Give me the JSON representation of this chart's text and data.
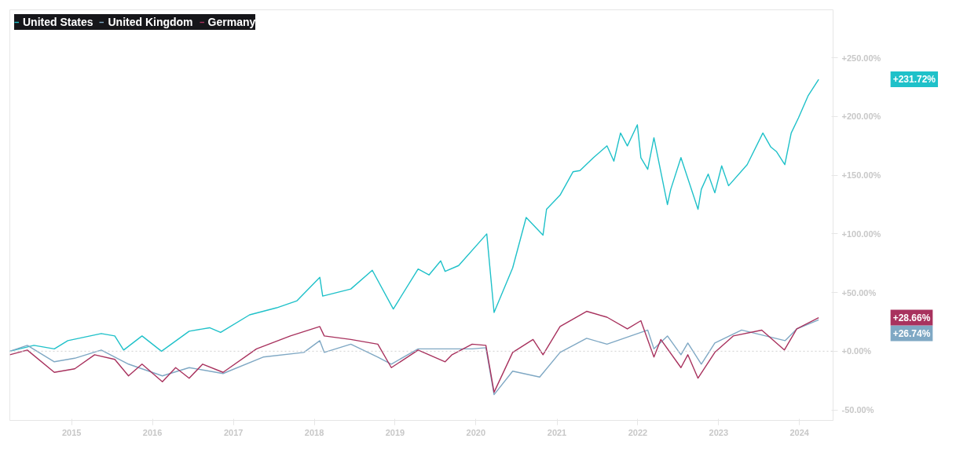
{
  "chart_data": {
    "type": "line",
    "xlim": [
      "2014-03-28",
      "2024-06-01"
    ],
    "xticks": [
      "2015",
      "2016",
      "2017",
      "2018",
      "2019",
      "2020",
      "2021",
      "2022",
      "2023",
      "2024"
    ],
    "ylim": [
      -59,
      291
    ],
    "yticks": [
      {
        "value": -50,
        "label": "-50.00%"
      },
      {
        "value": 0,
        "label": "+0.00%"
      },
      {
        "value": 50,
        "label": "+50.00%"
      },
      {
        "value": 100,
        "label": "+100.00%"
      },
      {
        "value": 150,
        "label": "+150.00%"
      },
      {
        "value": 200,
        "label": "+200.00%"
      },
      {
        "value": 250,
        "label": "+250.00%"
      }
    ],
    "grid": false,
    "legend": "top left",
    "ref_lines": [
      {
        "axis": "y",
        "value": 0,
        "color": "#d0d0d0",
        "line_style": "dotted"
      }
    ],
    "series": [
      {
        "name": "United States",
        "color": "#1fc1c9",
        "x": [
          "2014-03-28",
          "2014-07",
          "2014-10",
          "2014-12",
          "2015-05",
          "2015-07",
          "2015-08-24",
          "2015-11",
          "2016-02-11",
          "2016-06",
          "2016-09",
          "2016-11-04",
          "2017-03",
          "2017-07",
          "2017-10",
          "2018-01-26",
          "2018-02-08",
          "2018-06",
          "2018-09-20",
          "2018-12-24",
          "2019-04",
          "2019-06-03",
          "2019-07-26",
          "2019-08",
          "2019-10",
          "2020-02-19",
          "2020-03-23",
          "2020-06",
          "2020-08",
          "2020-10-30",
          "2020-11",
          "2021-01",
          "2021-03",
          "2021-04",
          "2021-06",
          "2021-08",
          "2021-09",
          "2021-10",
          "2021-11",
          "2021-12-30",
          "2022-01",
          "2022-02",
          "2022-03",
          "2022-05",
          "2022-05-30",
          "2022-07",
          "2022-09-30",
          "2022-10",
          "2022-11",
          "2022-12",
          "2023-01",
          "2023-02",
          "2023-05-10",
          "2023-07-20",
          "2023-08-25",
          "2023-09-20",
          "2023-10-27",
          "2023-11-25",
          "2023-12-28",
          "2024-02-10",
          "2024-03-28"
        ],
        "values": [
          0,
          5,
          2,
          9,
          15,
          13,
          1,
          13,
          0,
          17,
          20,
          16,
          31,
          37,
          43,
          63,
          47,
          53,
          69,
          36,
          70,
          65,
          77,
          68,
          73,
          100,
          33,
          71,
          114,
          99,
          121,
          133,
          153,
          154,
          165,
          175,
          162,
          186,
          175,
          193,
          165,
          155,
          182,
          125,
          138,
          165,
          121,
          138,
          151,
          135,
          158,
          141,
          159,
          186,
          174,
          170,
          159,
          186,
          199,
          218,
          231.72
        ]
      },
      {
        "name": "United Kingdom",
        "color": "#7fa8c4",
        "x": [
          "2014-03-28",
          "2014-06",
          "2014-10",
          "2015-01",
          "2015-05",
          "2015-09",
          "2016-02",
          "2016-06",
          "2016-11",
          "2017-05",
          "2017-11",
          "2018-01-26",
          "2018-02",
          "2018-06",
          "2018-10",
          "2018-12",
          "2019-04",
          "2019-12",
          "2020-02",
          "2020-03-23",
          "2020-06",
          "2020-10",
          "2021-01",
          "2021-05",
          "2021-08",
          "2022-02",
          "2022-03",
          "2022-05",
          "2022-07",
          "2022-08",
          "2022-10",
          "2022-12",
          "2023-04-15",
          "2023-10-28",
          "2023-12-20",
          "2024-03-28"
        ],
        "values": [
          0,
          5,
          -9,
          -6,
          1,
          -11,
          -21,
          -14,
          -19,
          -5,
          -1,
          9,
          -1,
          6,
          -5,
          -11,
          2,
          2,
          3,
          -37,
          -17,
          -22,
          -1,
          11,
          6,
          18,
          2,
          13,
          -3,
          7,
          -11,
          7,
          18,
          9,
          19,
          26.74
        ]
      },
      {
        "name": "Germany",
        "color": "#a8325e",
        "x": [
          "2014-03-28",
          "2014-06",
          "2014-10",
          "2015-01",
          "2015-04",
          "2015-07",
          "2015-09",
          "2015-11",
          "2016-02",
          "2016-04",
          "2016-06",
          "2016-08",
          "2016-11",
          "2017-04",
          "2017-09",
          "2018-01-26",
          "2018-02",
          "2018-06",
          "2018-10",
          "2018-12",
          "2019-04",
          "2019-08",
          "2019-09",
          "2019-12",
          "2020-02",
          "2020-03-23",
          "2020-06",
          "2020-09",
          "2020-10-30",
          "2021-01",
          "2021-05",
          "2021-08",
          "2021-11",
          "2022-01",
          "2022-03",
          "2022-04",
          "2022-07",
          "2022-08",
          "2022-09-30",
          "2022-12",
          "2023-03-08",
          "2023-07-15",
          "2023-10-25",
          "2023-12-20",
          "2024-03-28"
        ],
        "values": [
          -3,
          1,
          -18,
          -15,
          -3,
          -7,
          -21,
          -11,
          -26,
          -14,
          -23,
          -11,
          -18,
          2,
          13,
          21,
          13,
          10,
          6,
          -14,
          1,
          -9,
          -3,
          6,
          5,
          -35,
          -1,
          10,
          -3,
          21,
          34,
          29,
          19,
          26,
          -5,
          10,
          -14,
          -3,
          -23,
          -1,
          13,
          18,
          1,
          19,
          28.66
        ]
      }
    ],
    "annotations": [
      "+231.72%",
      "+26.74%",
      "+28.66%"
    ]
  }
}
